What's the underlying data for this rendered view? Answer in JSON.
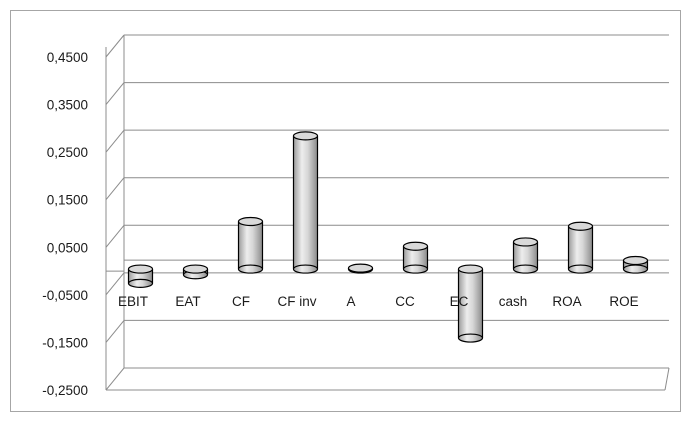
{
  "chart_data": {
    "type": "bar",
    "style": "3d-cylinder",
    "title": "",
    "xlabel": "",
    "ylabel": "",
    "categories": [
      "EBIT",
      "EAT",
      "CF",
      "CF inv",
      "A",
      "CC",
      "EC",
      "cash",
      "ROA",
      "ROE"
    ],
    "values": [
      -0.03,
      -0.012,
      0.1,
      0.28,
      0.002,
      0.048,
      -0.145,
      0.057,
      0.09,
      0.018
    ],
    "yticks": [
      "0,4500",
      "0,3500",
      "0,2500",
      "0,1500",
      "0,0500",
      "-0,0500",
      "-0,1500",
      "-0,2500"
    ],
    "ylim": [
      -0.25,
      0.45
    ],
    "grid": true,
    "legend": "none",
    "colors": {
      "bar": "#c8c8c8",
      "bar_edge": "#000000",
      "grid": "#8c8c8c"
    }
  }
}
